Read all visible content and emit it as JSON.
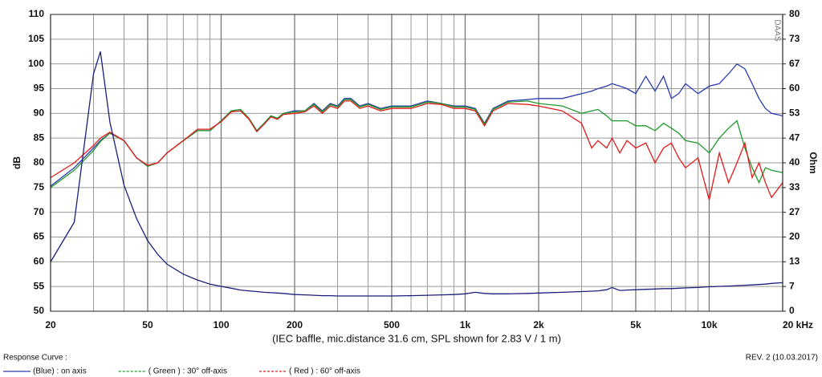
{
  "chart_data": {
    "type": "line",
    "title_left": "Response Curve :",
    "revision": "REV. 2 (10.03.2017)",
    "watermark": "DAAS",
    "xlabel": "(IEC baffle, mic.distance 31.6 cm, SPL shown for 2.83 V / 1 m)",
    "ylabel": "dB",
    "y2label": "Ohm",
    "xscale": "log",
    "grid": true,
    "legend": "bottom",
    "xlim": [
      20,
      20000
    ],
    "ylim": [
      50,
      110
    ],
    "y2lim": [
      0,
      80
    ],
    "xticks": [
      20,
      50,
      100,
      200,
      500,
      {
        "value": 1000,
        "label": "1k"
      },
      {
        "value": 2000,
        "label": "2k"
      },
      {
        "value": 5000,
        "label": "5k"
      },
      {
        "value": 10000,
        "label": "10k"
      },
      {
        "value": 20000,
        "label": "20 kHz"
      }
    ],
    "xminor": [
      30,
      40,
      60,
      70,
      80,
      90,
      300,
      400,
      600,
      700,
      800,
      900,
      3000,
      4000,
      6000,
      7000,
      8000,
      9000
    ],
    "yticks": [
      50,
      55,
      60,
      65,
      70,
      75,
      80,
      85,
      90,
      95,
      100,
      105,
      110
    ],
    "y2ticks": [
      0,
      {
        "value": 6.667,
        "label": "7"
      },
      {
        "value": 13.333,
        "label": "13"
      },
      20,
      {
        "value": 26.667,
        "label": "27"
      },
      {
        "value": 33.333,
        "label": "33"
      },
      40,
      {
        "value": 46.667,
        "label": "47"
      },
      {
        "value": 53.333,
        "label": "53"
      },
      60,
      {
        "value": 66.667,
        "label": "67"
      },
      {
        "value": 73.333,
        "label": "73"
      },
      80
    ],
    "x": [
      20,
      25,
      30,
      32,
      35,
      40,
      45,
      50,
      55,
      60,
      70,
      80,
      90,
      100,
      110,
      120,
      130,
      140,
      150,
      160,
      170,
      180,
      200,
      220,
      240,
      260,
      280,
      300,
      320,
      340,
      370,
      400,
      450,
      500,
      600,
      700,
      800,
      900,
      1000,
      1100,
      1200,
      1300,
      1500,
      1800,
      2000,
      2500,
      3000,
      3300,
      3500,
      3800,
      4000,
      4300,
      4600,
      5000,
      5500,
      6000,
      6500,
      7000,
      7500,
      8000,
      9000,
      10000,
      11000,
      12000,
      13000,
      14000,
      15000,
      16000,
      17000,
      18000,
      20000
    ],
    "series": [
      {
        "name": "(Blue) : on axis",
        "color": "#2a3cb0",
        "values": [
          75.3,
          79,
          83,
          84.5,
          86,
          84.5,
          81,
          79.3,
          80,
          82,
          84.5,
          86.5,
          86.5,
          88.5,
          90.5,
          90.8,
          89,
          86.5,
          88,
          89.5,
          89,
          90,
          90.5,
          90.5,
          92,
          90.5,
          92,
          91.5,
          93,
          93,
          91.5,
          92,
          91,
          91.5,
          91.5,
          92.5,
          92,
          91.5,
          91.5,
          91,
          88,
          91,
          92.5,
          92.8,
          93,
          93,
          94,
          94.5,
          95,
          95.5,
          96,
          95.5,
          95,
          94,
          97.5,
          94.5,
          97.5,
          93,
          94,
          96,
          94,
          95.5,
          96,
          98,
          100,
          99,
          96,
          93,
          91,
          90,
          89.5
        ]
      },
      {
        "name": "( Green ) : 30° off-axis",
        "color": "#1e9a2a",
        "values": [
          75,
          78.5,
          82.5,
          84.3,
          86,
          84.5,
          81,
          79.3,
          80,
          82,
          84.5,
          86.5,
          86.5,
          88.5,
          90.5,
          90.8,
          89,
          86.5,
          88,
          89.5,
          89,
          90,
          90.3,
          90.5,
          91.8,
          90.3,
          91.8,
          91.3,
          92.8,
          92.8,
          91.3,
          91.8,
          90.8,
          91.3,
          91.3,
          92.3,
          92,
          91.3,
          91.3,
          90.8,
          87.8,
          90.8,
          92.3,
          92.5,
          92,
          91.5,
          90,
          90.5,
          90.8,
          89.5,
          88.5,
          88.5,
          88.5,
          87.5,
          87.5,
          86.5,
          88,
          87,
          86,
          84.5,
          84,
          82,
          85,
          87,
          88.5,
          83,
          79,
          76,
          79,
          78.5,
          78
        ]
      },
      {
        "name": "( Red ) : 60° off-axis",
        "color": "#e41a1a",
        "values": [
          77,
          80,
          83.5,
          85,
          86.2,
          84.5,
          81,
          79.5,
          80,
          82,
          84.5,
          86.8,
          86.8,
          88.3,
          90.3,
          90.5,
          88.8,
          86.3,
          87.8,
          89.3,
          88.8,
          89.8,
          90,
          90.3,
          91.5,
          90,
          91.5,
          91,
          92.5,
          92.5,
          91,
          91.5,
          90.5,
          91,
          91,
          92,
          91.8,
          91,
          91,
          90.5,
          87.5,
          90.5,
          92,
          91.8,
          91.5,
          90.5,
          88,
          83,
          84.5,
          83,
          85,
          82,
          84.5,
          83,
          84,
          80,
          83,
          84,
          81,
          79,
          81,
          72.5,
          82,
          76,
          80,
          84,
          77,
          80,
          76,
          73,
          76
        ]
      },
      {
        "color": "#1a1f7a",
        "axis": "y2",
        "values": [
          13.3,
          24,
          64,
          70,
          51,
          34,
          25,
          19,
          15.3,
          12.7,
          10,
          8.4,
          7.3,
          6.7,
          6.2,
          5.7,
          5.5,
          5.3,
          5.1,
          5,
          4.9,
          4.8,
          4.5,
          4.4,
          4.3,
          4.2,
          4.2,
          4.1,
          4.1,
          4.1,
          4.1,
          4.1,
          4.1,
          4.1,
          4.2,
          4.3,
          4.4,
          4.5,
          4.7,
          5.1,
          4.8,
          4.7,
          4.7,
          4.8,
          4.9,
          5.1,
          5.3,
          5.4,
          5.5,
          5.8,
          6.4,
          5.6,
          5.7,
          5.8,
          5.9,
          6,
          6.1,
          6.1,
          6.2,
          6.3,
          6.4,
          6.6,
          6.7,
          6.8,
          6.9,
          7,
          7.1,
          7.2,
          7.3,
          7.5,
          7.7
        ]
      }
    ]
  }
}
